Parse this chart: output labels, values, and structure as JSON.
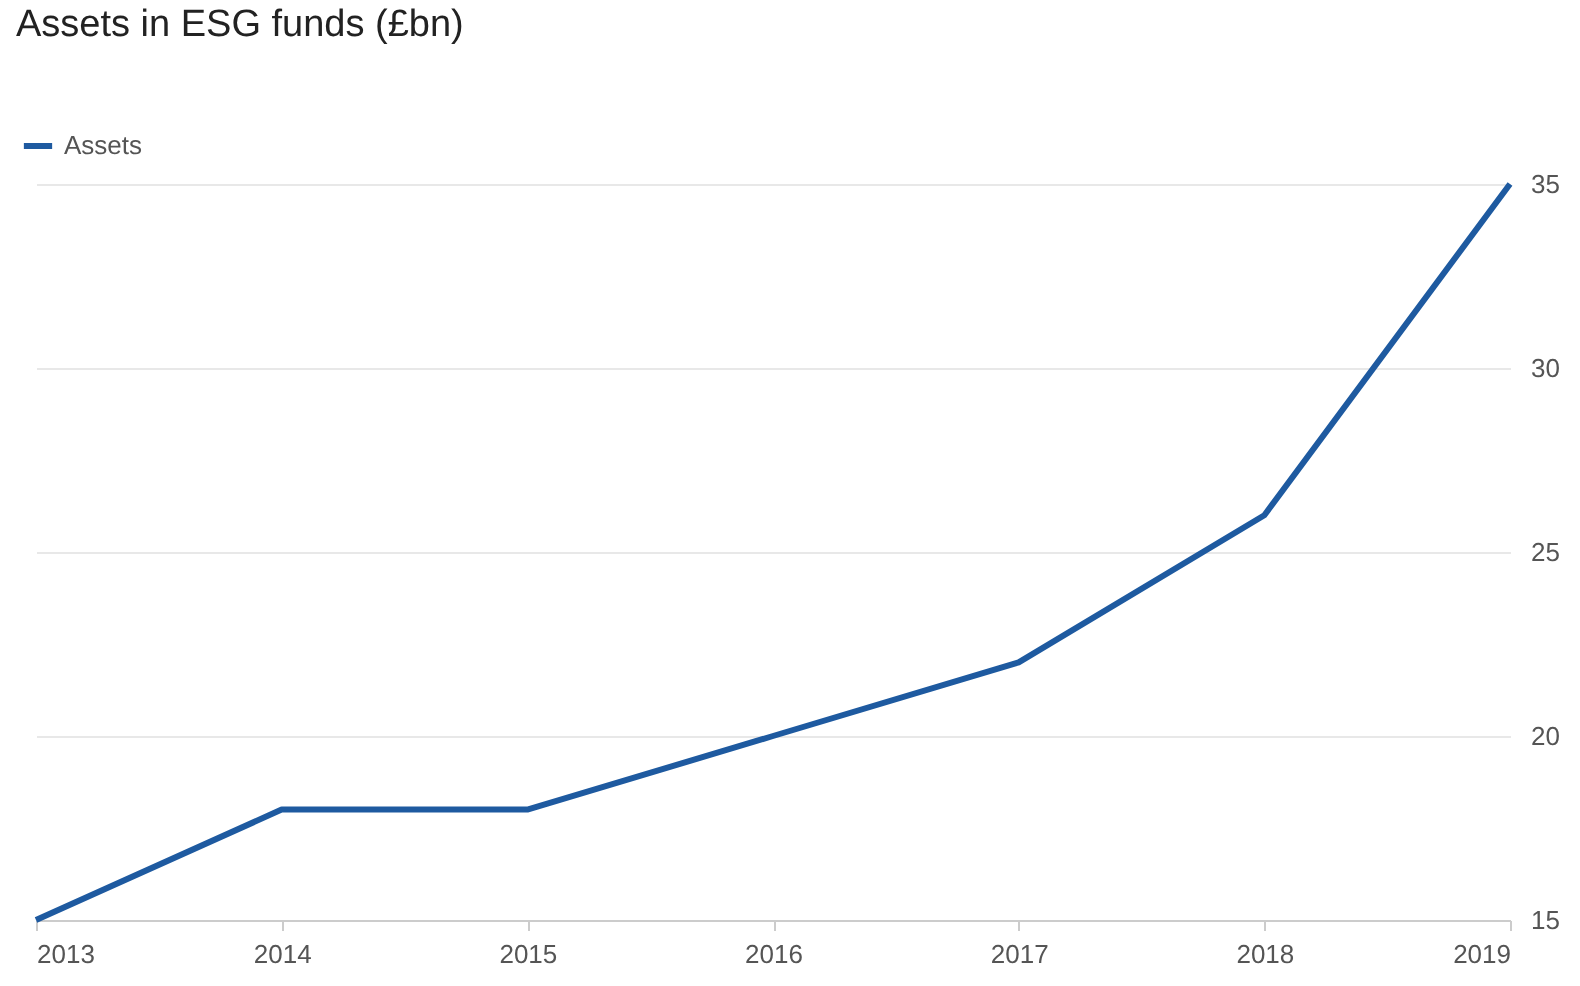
{
  "chart_data": {
    "type": "line",
    "title": "Assets in ESG funds (£bn)",
    "x": [
      2013,
      2014,
      2015,
      2016,
      2017,
      2018,
      2019
    ],
    "series": [
      {
        "name": "Assets",
        "color": "#1e5aa0",
        "values": [
          15,
          18,
          18,
          20,
          22,
          26,
          35
        ]
      }
    ],
    "xlim": [
      2013,
      2019
    ],
    "xticks": [
      2013,
      2014,
      2015,
      2016,
      2017,
      2018,
      2019
    ],
    "ylim": [
      15,
      35
    ],
    "yticks": [
      15,
      20,
      25,
      30,
      35
    ],
    "grid": "y",
    "legend": "top left",
    "marker": "none",
    "line_style": "solid"
  }
}
